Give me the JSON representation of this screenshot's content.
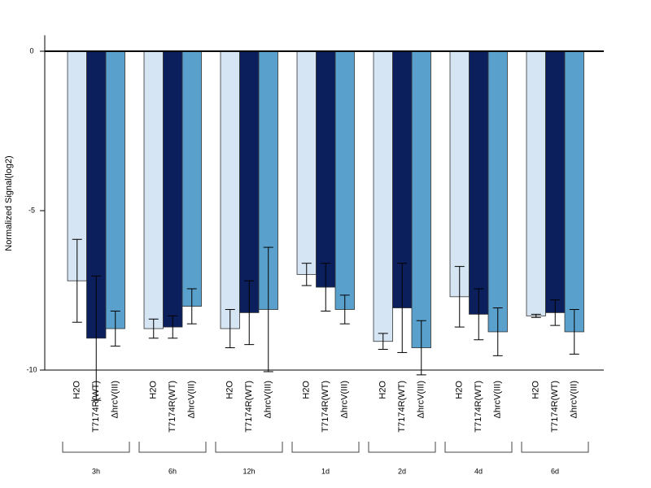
{
  "chart_data": {
    "type": "bar",
    "ylabel": "Normalized Signal(log2)",
    "ylim": [
      -10,
      0.5
    ],
    "yticks": [
      0,
      -5,
      -10
    ],
    "groups": [
      "3h",
      "6h",
      "12h",
      "1d",
      "2d",
      "4d",
      "6d"
    ],
    "series": [
      {
        "name": "H2O",
        "color": "#d6e5f4",
        "values": [
          -7.2,
          -8.7,
          -8.7,
          -7.0,
          -9.1,
          -7.7,
          -8.3
        ],
        "error": [
          1.3,
          0.3,
          0.6,
          0.35,
          0.25,
          0.95,
          0.05
        ]
      },
      {
        "name": "T7174R(WT)",
        "color": "#0a1f5c",
        "values": [
          -9.0,
          -8.65,
          -8.2,
          -7.4,
          -8.05,
          -8.25,
          -8.2
        ],
        "error": [
          1.95,
          0.35,
          1.0,
          0.75,
          1.4,
          0.8,
          0.4
        ]
      },
      {
        "name": "ΔhrcV(III)",
        "color": "#5aa0cc",
        "values": [
          -8.7,
          -8.0,
          -8.1,
          -8.1,
          -9.3,
          -8.8,
          -8.8
        ],
        "error": [
          0.55,
          0.55,
          1.95,
          0.45,
          0.85,
          0.75,
          0.7
        ]
      }
    ]
  }
}
